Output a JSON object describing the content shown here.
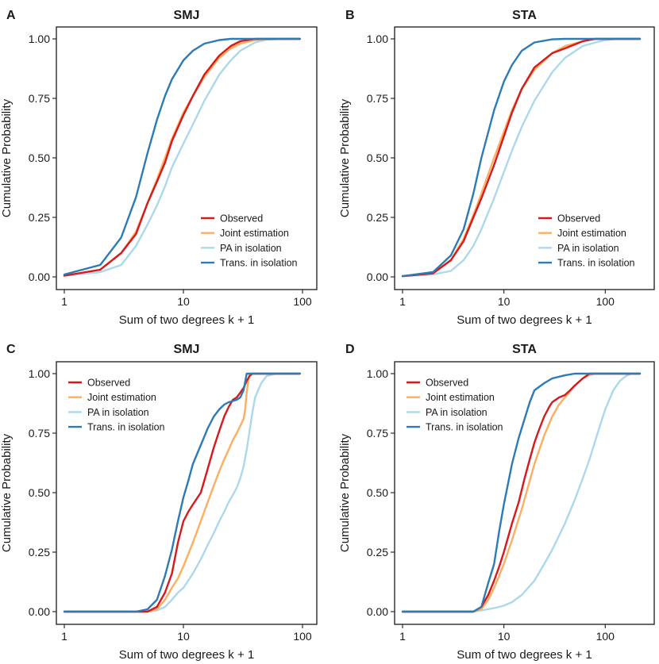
{
  "chart_data": [
    {
      "type": "line",
      "panel": "A",
      "title": "SMJ",
      "xlabel": "Sum of two degrees k + 1",
      "ylabel": "Cumulative Probability",
      "xscale": "log",
      "xlim": [
        1,
        100
      ],
      "ylim": [
        0,
        1
      ],
      "xticks": [
        1,
        10,
        100
      ],
      "xtick_labels": [
        "1",
        "10",
        "100"
      ],
      "yticks": [
        0,
        0.25,
        0.5,
        0.75,
        1
      ],
      "ytick_labels": [
        "0.00",
        "0.25",
        "0.50",
        "0.75",
        "1.00"
      ],
      "legend_position": "bottom-right",
      "series": [
        {
          "name": "PA in isolation",
          "color": "#abd9e9",
          "x": [
            1,
            2,
            3,
            4,
            5,
            6,
            7,
            8,
            10,
            12,
            15,
            20,
            25,
            30,
            40,
            50,
            70,
            95
          ],
          "y": [
            0.005,
            0.02,
            0.05,
            0.13,
            0.22,
            0.3,
            0.38,
            0.46,
            0.56,
            0.64,
            0.74,
            0.85,
            0.91,
            0.95,
            0.985,
            0.997,
            1,
            1
          ]
        },
        {
          "name": "Joint estimation",
          "color": "#fdae61",
          "x": [
            1,
            2,
            3,
            4,
            5,
            6,
            7,
            8,
            10,
            12,
            15,
            20,
            25,
            30,
            40,
            50,
            70,
            95
          ],
          "y": [
            0.005,
            0.03,
            0.1,
            0.19,
            0.31,
            0.41,
            0.5,
            0.58,
            0.69,
            0.76,
            0.84,
            0.92,
            0.96,
            0.98,
            0.995,
            1,
            1,
            1
          ]
        },
        {
          "name": "Observed",
          "color": "#d7191c",
          "x": [
            1,
            2,
            3,
            4,
            5,
            6,
            7,
            8,
            10,
            12,
            15,
            20,
            25,
            30,
            40,
            50,
            70,
            95
          ],
          "y": [
            0.005,
            0.03,
            0.1,
            0.18,
            0.31,
            0.4,
            0.48,
            0.57,
            0.68,
            0.76,
            0.85,
            0.93,
            0.97,
            0.99,
            1,
            1,
            1,
            1
          ]
        },
        {
          "name": "Trans. in isolation",
          "color": "#2c7bb6",
          "x": [
            1,
            2,
            3,
            4,
            5,
            6,
            7,
            8,
            10,
            12,
            15,
            20,
            25,
            30,
            40,
            50,
            70,
            95
          ],
          "y": [
            0.01,
            0.05,
            0.165,
            0.335,
            0.52,
            0.66,
            0.76,
            0.83,
            0.91,
            0.95,
            0.98,
            0.995,
            1,
            1,
            1,
            1,
            1,
            1
          ]
        }
      ]
    },
    {
      "type": "line",
      "panel": "B",
      "title": "STA",
      "xlabel": "Sum of two degrees k + 1",
      "ylabel": "Cumulative Probability",
      "xscale": "log",
      "xlim": [
        1,
        220
      ],
      "ylim": [
        0,
        1
      ],
      "xticks": [
        1,
        10,
        100
      ],
      "xtick_labels": [
        "1",
        "10",
        "100"
      ],
      "yticks": [
        0,
        0.25,
        0.5,
        0.75,
        1
      ],
      "ytick_labels": [
        "0.00",
        "0.25",
        "0.50",
        "0.75",
        "1.00"
      ],
      "legend_position": "bottom-right",
      "series": [
        {
          "name": "PA in isolation",
          "color": "#abd9e9",
          "x": [
            1,
            2,
            3,
            4,
            5,
            6,
            8,
            10,
            12,
            15,
            20,
            30,
            40,
            60,
            80,
            100,
            130,
            160,
            220
          ],
          "y": [
            0.003,
            0.01,
            0.025,
            0.07,
            0.13,
            0.2,
            0.33,
            0.44,
            0.53,
            0.63,
            0.74,
            0.86,
            0.92,
            0.97,
            0.985,
            0.995,
            1,
            1,
            1
          ]
        },
        {
          "name": "Joint estimation",
          "color": "#fdae61",
          "x": [
            1,
            2,
            3,
            4,
            5,
            6,
            8,
            10,
            12,
            15,
            20,
            30,
            40,
            60,
            80,
            100,
            130,
            160,
            220
          ],
          "y": [
            0.003,
            0.015,
            0.07,
            0.16,
            0.26,
            0.35,
            0.5,
            0.61,
            0.7,
            0.79,
            0.87,
            0.94,
            0.97,
            0.99,
            1,
            1,
            1,
            1,
            1
          ]
        },
        {
          "name": "Observed",
          "color": "#d7191c",
          "x": [
            1,
            2,
            3,
            4,
            5,
            6,
            8,
            10,
            12,
            15,
            20,
            30,
            40,
            60,
            80,
            100,
            130,
            160,
            220
          ],
          "y": [
            0.003,
            0.015,
            0.07,
            0.15,
            0.25,
            0.33,
            0.47,
            0.59,
            0.69,
            0.79,
            0.88,
            0.94,
            0.96,
            0.99,
            1,
            1,
            1,
            1,
            1
          ]
        },
        {
          "name": "Trans. in isolation",
          "color": "#2c7bb6",
          "x": [
            1,
            2,
            3,
            4,
            5,
            6,
            8,
            10,
            12,
            15,
            20,
            30,
            40,
            60,
            80,
            100,
            130,
            160,
            220
          ],
          "y": [
            0.003,
            0.02,
            0.09,
            0.2,
            0.35,
            0.5,
            0.7,
            0.82,
            0.89,
            0.95,
            0.985,
            0.998,
            1,
            1,
            1,
            1,
            1,
            1,
            1
          ]
        }
      ]
    },
    {
      "type": "line",
      "panel": "C",
      "title": "SMJ",
      "xlabel": "Sum of two degrees k + 1",
      "ylabel": "Cumulative Probability",
      "xscale": "log",
      "xlim": [
        1,
        100
      ],
      "ylim": [
        0,
        1
      ],
      "xticks": [
        1,
        10,
        100
      ],
      "xtick_labels": [
        "1",
        "10",
        "100"
      ],
      "yticks": [
        0,
        0.25,
        0.5,
        0.75,
        1
      ],
      "ytick_labels": [
        "0.00",
        "0.25",
        "0.50",
        "0.75",
        "1.00"
      ],
      "legend_position": "top-left",
      "series": [
        {
          "name": "PA in isolation",
          "color": "#abd9e9",
          "x": [
            1,
            5,
            6,
            7,
            8,
            9,
            10,
            12,
            14,
            16,
            18,
            20,
            22,
            24,
            26,
            28,
            30,
            32,
            34,
            36,
            38,
            40,
            45,
            50,
            60,
            80,
            95
          ],
          "y": [
            0,
            0,
            0.005,
            0.02,
            0.05,
            0.08,
            0.1,
            0.16,
            0.22,
            0.28,
            0.33,
            0.38,
            0.42,
            0.46,
            0.49,
            0.52,
            0.56,
            0.61,
            0.68,
            0.76,
            0.84,
            0.9,
            0.96,
            0.99,
            1,
            1,
            1
          ]
        },
        {
          "name": "Joint estimation",
          "color": "#fdae61",
          "x": [
            1,
            5,
            6,
            7,
            8,
            9,
            10,
            12,
            14,
            16,
            18,
            20,
            22,
            24,
            26,
            28,
            30,
            32,
            33,
            34,
            35,
            36,
            38,
            40,
            45,
            60,
            95
          ],
          "y": [
            0,
            0,
            0.01,
            0.05,
            0.1,
            0.14,
            0.19,
            0.29,
            0.38,
            0.46,
            0.53,
            0.59,
            0.64,
            0.68,
            0.72,
            0.75,
            0.78,
            0.81,
            0.85,
            0.92,
            0.97,
            1,
            1,
            1,
            1,
            1,
            1
          ]
        },
        {
          "name": "Observed",
          "color": "#d7191c",
          "x": [
            1,
            5,
            6,
            7,
            8,
            9,
            10,
            11,
            12,
            14,
            16,
            18,
            20,
            22,
            24,
            26,
            28,
            30,
            32,
            34,
            36,
            38,
            40,
            45,
            60,
            95
          ],
          "y": [
            0,
            0,
            0.02,
            0.08,
            0.16,
            0.29,
            0.38,
            0.42,
            0.45,
            0.5,
            0.6,
            0.69,
            0.76,
            0.82,
            0.86,
            0.89,
            0.9,
            0.92,
            0.94,
            0.97,
            0.99,
            1,
            1,
            1,
            1,
            1
          ]
        },
        {
          "name": "Trans. in isolation",
          "color": "#2c7bb6",
          "x": [
            1,
            4,
            5,
            6,
            7,
            8,
            9,
            10,
            11,
            12,
            14,
            16,
            18,
            20,
            22,
            24,
            26,
            28,
            30,
            32,
            34,
            36,
            40,
            60,
            95
          ],
          "y": [
            0,
            0,
            0.01,
            0.05,
            0.15,
            0.26,
            0.38,
            0.48,
            0.55,
            0.62,
            0.7,
            0.77,
            0.82,
            0.85,
            0.87,
            0.88,
            0.885,
            0.89,
            0.9,
            0.93,
            1,
            1,
            1,
            1,
            1
          ]
        }
      ]
    },
    {
      "type": "line",
      "panel": "D",
      "title": "STA",
      "xlabel": "Sum of two degrees k + 1",
      "ylabel": "Cumulative Probability",
      "xscale": "log",
      "xlim": [
        1,
        220
      ],
      "ylim": [
        0,
        1
      ],
      "xticks": [
        1,
        10,
        100
      ],
      "xtick_labels": [
        "1",
        "10",
        "100"
      ],
      "yticks": [
        0,
        0.25,
        0.5,
        0.75,
        1
      ],
      "ytick_labels": [
        "0.00",
        "0.25",
        "0.50",
        "0.75",
        "1.00"
      ],
      "legend_position": "top-left",
      "series": [
        {
          "name": "PA in isolation",
          "color": "#abd9e9",
          "x": [
            1,
            5,
            6,
            8,
            10,
            12,
            15,
            20,
            25,
            30,
            40,
            50,
            60,
            70,
            80,
            90,
            100,
            120,
            140,
            160,
            180,
            220
          ],
          "y": [
            0,
            0,
            0.005,
            0.015,
            0.025,
            0.04,
            0.07,
            0.13,
            0.2,
            0.26,
            0.37,
            0.47,
            0.56,
            0.64,
            0.72,
            0.79,
            0.85,
            0.93,
            0.97,
            0.99,
            1,
            1
          ]
        },
        {
          "name": "Joint estimation",
          "color": "#fdae61",
          "x": [
            1,
            5,
            6,
            7,
            8,
            10,
            12,
            15,
            18,
            20,
            25,
            30,
            35,
            40,
            50,
            60,
            70,
            80,
            100,
            220
          ],
          "y": [
            0,
            0,
            0.01,
            0.05,
            0.1,
            0.2,
            0.3,
            0.43,
            0.55,
            0.62,
            0.74,
            0.82,
            0.87,
            0.9,
            0.95,
            0.98,
            0.995,
            1,
            1,
            1
          ]
        },
        {
          "name": "Observed",
          "color": "#d7191c",
          "x": [
            1,
            5,
            6,
            7,
            8,
            9,
            10,
            12,
            14,
            16,
            18,
            20,
            22,
            25,
            28,
            30,
            35,
            40,
            45,
            50,
            60,
            70,
            80,
            220
          ],
          "y": [
            0,
            0,
            0.02,
            0.07,
            0.13,
            0.19,
            0.25,
            0.37,
            0.46,
            0.56,
            0.64,
            0.71,
            0.76,
            0.82,
            0.86,
            0.88,
            0.9,
            0.91,
            0.93,
            0.95,
            0.98,
            1,
            1,
            1
          ]
        },
        {
          "name": "Trans. in isolation",
          "color": "#2c7bb6",
          "x": [
            1,
            5,
            6,
            7,
            8,
            9,
            10,
            12,
            14,
            16,
            18,
            20,
            25,
            30,
            40,
            50,
            60,
            80,
            100,
            220
          ],
          "y": [
            0,
            0,
            0.02,
            0.12,
            0.2,
            0.34,
            0.45,
            0.62,
            0.73,
            0.81,
            0.88,
            0.93,
            0.96,
            0.98,
            0.993,
            1,
            1,
            1,
            1,
            1
          ]
        }
      ]
    }
  ]
}
